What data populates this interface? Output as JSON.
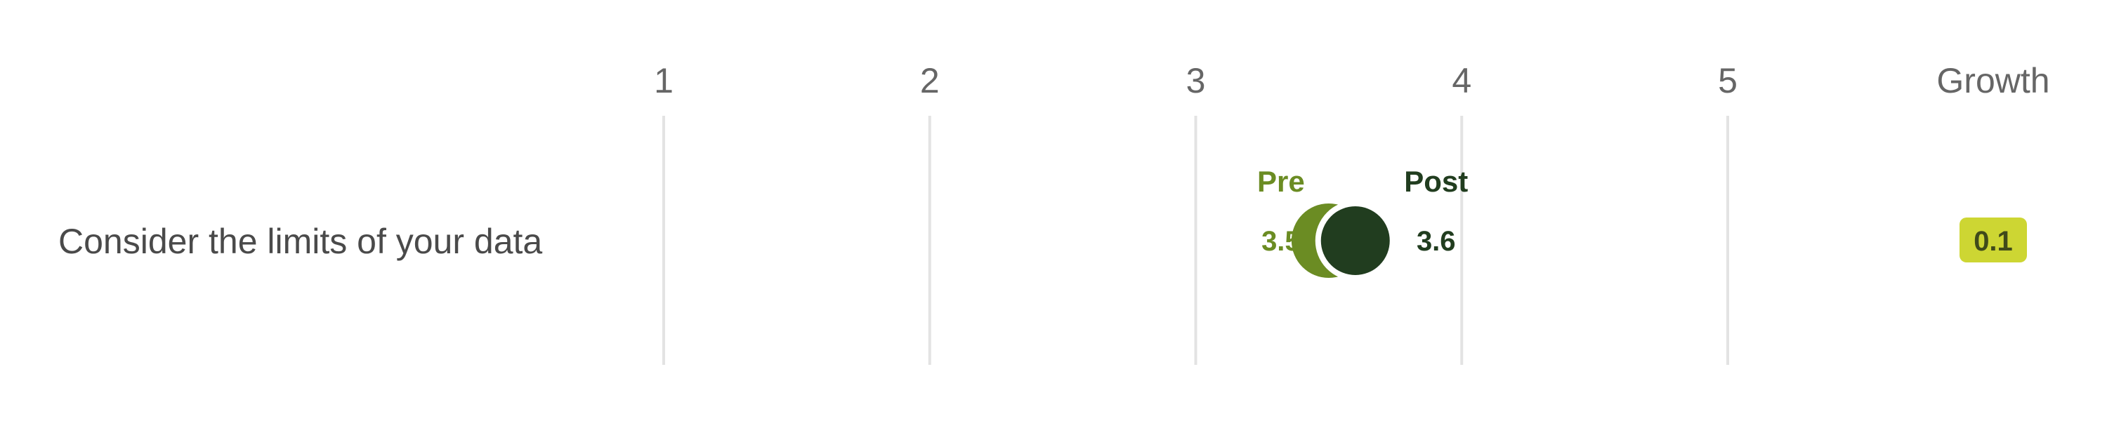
{
  "chart_data": {
    "type": "dumbbell",
    "xlim": [
      1,
      5
    ],
    "ticks": [
      "1",
      "2",
      "3",
      "4",
      "5"
    ],
    "growth_header": "Growth",
    "series": [
      {
        "name": "Pre",
        "color": "#6b8c23"
      },
      {
        "name": "Post",
        "color": "#213d1f"
      }
    ],
    "rows": [
      {
        "label": "Consider the limits of your data",
        "pre": 3.5,
        "post": 3.6,
        "pre_text": "3.5",
        "post_text": "3.6",
        "growth": "0.1"
      }
    ],
    "growth_badge_color": "#cdd633"
  }
}
